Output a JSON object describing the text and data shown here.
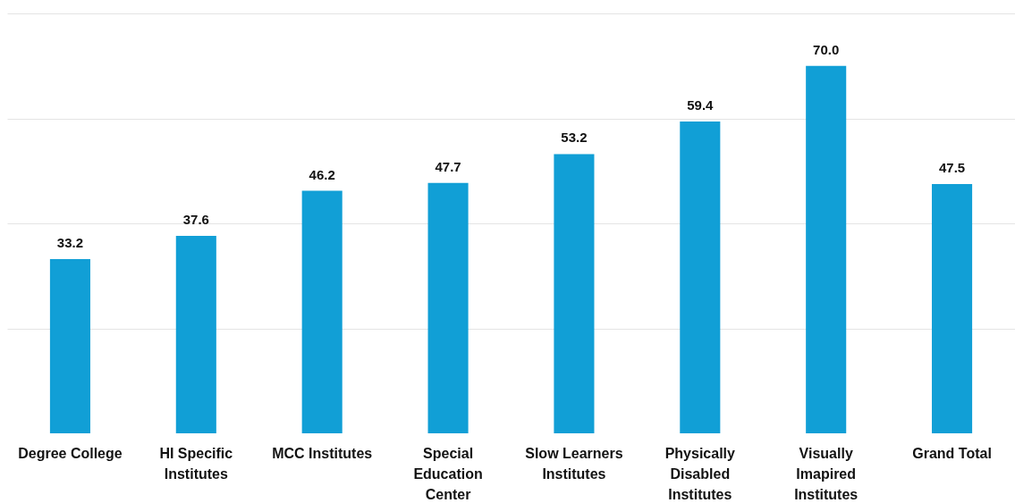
{
  "chart_data": {
    "type": "bar",
    "categories": [
      "Degree College",
      "HI Specific Institutes",
      "MCC Institutes",
      "Special Education Center",
      "Slow Learners Institutes",
      "Physically Disabled Institutes",
      "Visually Imapired Institutes",
      "Grand Total"
    ],
    "values": [
      33.2,
      37.6,
      46.2,
      47.7,
      53.2,
      59.4,
      70.0,
      47.5
    ],
    "value_labels": [
      "33.2",
      "37.6",
      "46.2",
      "47.7",
      "53.2",
      "59.4",
      "70.0",
      "47.5"
    ],
    "color": "#119fd6",
    "ylim": [
      0,
      80
    ],
    "yticks": [
      {
        "value": 20,
        "label": null
      },
      {
        "value": 40,
        "label": null
      },
      {
        "value": 60,
        "label": null
      },
      {
        "value": 80,
        "label": null
      }
    ],
    "grid": "y",
    "tick_labels": "x"
  }
}
